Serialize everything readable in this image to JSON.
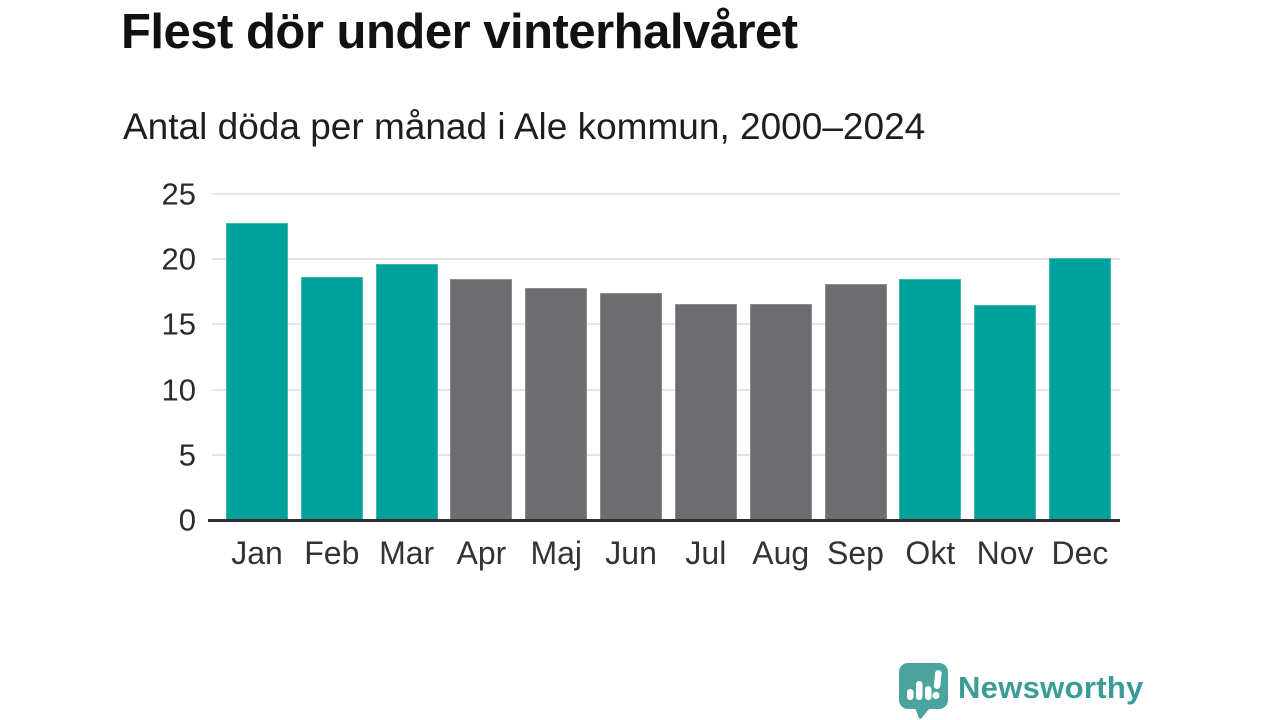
{
  "header": {
    "title": "Flest dör under vinterhalvåret",
    "subtitle": "Antal döda per månad i Ale kommun, 2000–2024"
  },
  "chart_data": {
    "type": "bar",
    "title": "Flest dör under vinterhalvåret",
    "subtitle": "Antal döda per månad i Ale kommun, 2000–2024",
    "categories": [
      "Jan",
      "Feb",
      "Mar",
      "Apr",
      "Maj",
      "Jun",
      "Jul",
      "Aug",
      "Sep",
      "Okt",
      "Nov",
      "Dec"
    ],
    "values": [
      22.8,
      18.6,
      19.6,
      18.5,
      17.8,
      17.4,
      16.6,
      16.6,
      18.1,
      18.5,
      16.5,
      20.1
    ],
    "bar_color_keys": [
      "teal",
      "teal",
      "teal",
      "gray",
      "gray",
      "gray",
      "gray",
      "gray",
      "gray",
      "teal",
      "teal",
      "teal"
    ],
    "xlabel": "",
    "ylabel": "",
    "ylim": [
      0,
      25
    ],
    "y_ticks": [
      0,
      5,
      10,
      15,
      20,
      25
    ],
    "grid": "horizontal gridlines at 5,10,15,20,25",
    "legend_position": "none",
    "colors": {
      "teal": "#00a19a",
      "teal_edge": "#43b5ae",
      "gray": "#6d6c71",
      "gray_edge": "#8d8c92",
      "gridline": "#e4e4e4",
      "axis_line": "#2e2e2e",
      "tick_text": "#2b2b2b"
    }
  },
  "branding": {
    "logo_text": "Newsworthy",
    "logo_color": "#3a9c96",
    "logo_icon": "newsworthy-speech-bubble-bar-chart-icon",
    "logo_icon_color": "#4aa39d"
  }
}
